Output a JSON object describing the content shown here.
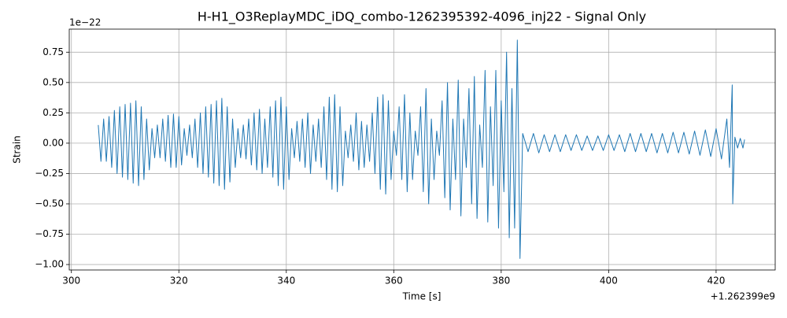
{
  "chart_data": {
    "type": "line",
    "title": "H-H1_O3ReplayMDC_iDQ_combo-1262395392-4096_inj22 - Signal Only",
    "x_label": "Time [s]",
    "y_label": "Strain",
    "x_offset_label": "+1.262399e9",
    "y_offset_label": "1e−22",
    "xlim": [
      299.6,
      431
    ],
    "ylim": [
      -1.045,
      0.94
    ],
    "xticks": [
      300,
      320,
      340,
      360,
      380,
      400,
      420
    ],
    "yticks": [
      {
        "value": -1,
        "label": "−1.00"
      },
      {
        "value": -0.75,
        "label": "−0.75"
      },
      {
        "value": -0.5,
        "label": "−0.50"
      },
      {
        "value": -0.25,
        "label": "−0.25"
      },
      {
        "value": 0,
        "label": "0.00"
      },
      {
        "value": 0.25,
        "label": "0.25"
      },
      {
        "value": 0.5,
        "label": "0.50"
      },
      0.75
    ],
    "grid": true,
    "series": [
      {
        "name": "Strain",
        "color": "#1f77b4",
        "x": [
          305,
          305.5,
          306,
          306.5,
          307,
          307.5,
          308,
          308.5,
          309,
          309.5,
          310,
          310.5,
          311,
          311.5,
          312,
          312.5,
          313,
          313.5,
          314,
          314.5,
          315,
          315.5,
          316,
          316.5,
          317,
          317.5,
          318,
          318.5,
          319,
          319.5,
          320,
          320.5,
          321,
          321.5,
          322,
          322.5,
          323,
          323.5,
          324,
          324.5,
          325,
          325.5,
          326,
          326.5,
          327,
          327.5,
          328,
          328.5,
          329,
          329.5,
          330,
          330.5,
          331,
          331.5,
          332,
          332.5,
          333,
          333.5,
          334,
          334.5,
          335,
          335.5,
          336,
          336.5,
          337,
          337.5,
          338,
          338.5,
          339,
          339.5,
          340,
          340.5,
          341,
          341.5,
          342,
          342.5,
          343,
          343.5,
          344,
          344.5,
          345,
          345.5,
          346,
          346.5,
          347,
          347.5,
          348,
          348.5,
          349,
          349.5,
          350,
          350.5,
          351,
          351.5,
          352,
          352.5,
          353,
          353.5,
          354,
          354.5,
          355,
          355.5,
          356,
          356.5,
          357,
          357.5,
          358,
          358.5,
          359,
          359.5,
          360,
          360.5,
          361,
          361.5,
          362,
          362.5,
          363,
          363.5,
          364,
          364.5,
          365,
          365.5,
          366,
          366.5,
          367,
          367.5,
          368,
          368.5,
          369,
          369.5,
          370,
          370.5,
          371,
          371.5,
          372,
          372.5,
          373,
          373.5,
          374,
          374.5,
          375,
          375.5,
          376,
          376.5,
          377,
          377.5,
          378,
          378.5,
          379,
          379.5,
          380,
          380.5,
          381,
          381.5,
          382,
          382.5,
          383,
          383.5,
          384,
          385,
          386,
          387,
          388,
          389,
          390,
          391,
          392,
          393,
          394,
          395,
          396,
          397,
          398,
          399,
          400,
          401,
          402,
          403,
          404,
          405,
          406,
          407,
          408,
          409,
          410,
          411,
          412,
          413,
          414,
          415,
          416,
          417,
          418,
          419,
          420,
          421,
          422,
          422.5,
          423,
          423.1,
          423.5,
          424,
          424.5,
          425,
          425.3
        ],
        "values": [
          0.15,
          -0.15,
          0.2,
          -0.15,
          0.22,
          -0.2,
          0.27,
          -0.25,
          0.3,
          -0.28,
          0.32,
          -0.3,
          0.33,
          -0.33,
          0.35,
          -0.35,
          0.3,
          -0.3,
          0.2,
          -0.22,
          0.12,
          -0.12,
          0.15,
          -0.12,
          0.2,
          -0.15,
          0.23,
          -0.2,
          0.24,
          -0.2,
          0.22,
          -0.18,
          0.12,
          -0.1,
          0.15,
          -0.12,
          0.2,
          -0.2,
          0.25,
          -0.25,
          0.3,
          -0.28,
          0.32,
          -0.33,
          0.35,
          -0.35,
          0.37,
          -0.38,
          0.3,
          -0.32,
          0.2,
          -0.2,
          0.12,
          -0.12,
          0.15,
          -0.13,
          0.2,
          -0.18,
          0.25,
          -0.22,
          0.28,
          -0.25,
          0.2,
          -0.2,
          0.3,
          -0.28,
          0.35,
          -0.35,
          0.38,
          -0.38,
          0.3,
          -0.3,
          0.12,
          -0.12,
          0.18,
          -0.15,
          0.2,
          -0.2,
          0.25,
          -0.25,
          0.15,
          -0.15,
          0.2,
          -0.2,
          0.3,
          -0.3,
          0.38,
          -0.38,
          0.4,
          -0.4,
          0.3,
          -0.35,
          0.1,
          -0.12,
          0.15,
          -0.15,
          0.25,
          -0.22,
          0.18,
          -0.2,
          0.15,
          -0.15,
          0.25,
          -0.25,
          0.38,
          -0.38,
          0.4,
          -0.42,
          0.35,
          -0.3,
          0.1,
          -0.1,
          0.3,
          -0.3,
          0.4,
          -0.4,
          0.25,
          -0.3,
          0.1,
          -0.1,
          0.3,
          -0.4,
          0.45,
          -0.5,
          0.2,
          -0.3,
          0.1,
          -0.1,
          0.35,
          -0.45,
          0.5,
          -0.55,
          0.2,
          -0.3,
          0.52,
          -0.6,
          0.2,
          -0.2,
          0.45,
          -0.5,
          0.55,
          -0.62,
          0.15,
          -0.2,
          0.6,
          -0.65,
          0.3,
          -0.35,
          0.6,
          -0.7,
          0.35,
          -0.4,
          0.75,
          -0.78,
          0.45,
          -0.7,
          0.85,
          -0.95,
          0.08,
          -0.07,
          0.08,
          -0.08,
          0.07,
          -0.07,
          0.07,
          -0.07,
          0.07,
          -0.06,
          0.07,
          -0.06,
          0.06,
          -0.06,
          0.06,
          -0.06,
          0.07,
          -0.06,
          0.07,
          -0.07,
          0.08,
          -0.07,
          0.08,
          -0.07,
          0.08,
          -0.08,
          0.08,
          -0.08,
          0.09,
          -0.08,
          0.09,
          -0.09,
          0.1,
          -0.1,
          0.11,
          -0.11,
          0.12,
          -0.13,
          0.2,
          -0.2,
          0.48,
          -0.5,
          0.05,
          -0.04,
          0.04,
          -0.04,
          0.03
        ]
      }
    ]
  }
}
